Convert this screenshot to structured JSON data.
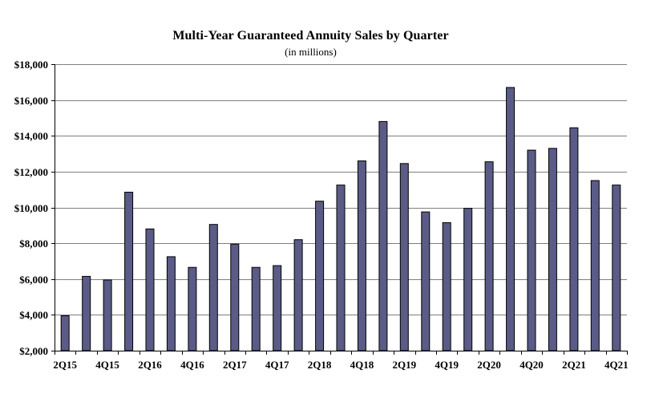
{
  "chart_data": {
    "type": "bar",
    "title": "Multi-Year Guaranteed Annuity Sales by Quarter",
    "subtitle": "(in millions)",
    "xlabel": "",
    "ylabel": "",
    "ylim": [
      2000,
      18000
    ],
    "ytick_step": 2000,
    "ytick_labels": [
      "$2,000",
      "$4,000",
      "$6,000",
      "$8,000",
      "$10,000",
      "$12,000",
      "$14,000",
      "$16,000",
      "$18,000"
    ],
    "categories": [
      "2Q15",
      "3Q15",
      "4Q15",
      "1Q16",
      "2Q16",
      "3Q16",
      "4Q16",
      "1Q17",
      "2Q17",
      "3Q17",
      "4Q17",
      "1Q18",
      "2Q18",
      "3Q18",
      "4Q18",
      "1Q19",
      "2Q19",
      "3Q19",
      "4Q19",
      "1Q20",
      "2Q20",
      "3Q20",
      "4Q20",
      "1Q21",
      "2Q21",
      "3Q21",
      "4Q21"
    ],
    "visible_xtick_labels": [
      "2Q15",
      "4Q15",
      "2Q16",
      "4Q16",
      "2Q17",
      "4Q17",
      "2Q18",
      "4Q18",
      "2Q19",
      "4Q19",
      "2Q20",
      "4Q20",
      "2Q21",
      "4Q21"
    ],
    "values": [
      3950,
      6150,
      5950,
      10850,
      8800,
      7250,
      6650,
      9050,
      7950,
      6650,
      6750,
      8200,
      10350,
      11250,
      12600,
      14800,
      12450,
      9750,
      9150,
      9950,
      12550,
      16700,
      13200,
      13300,
      14450,
      11500,
      11250
    ],
    "bar_color": "#5b5b87",
    "bar_edge_color": "#000000",
    "grid": true,
    "grid_color": "#7f7f7f",
    "legend": "none"
  }
}
